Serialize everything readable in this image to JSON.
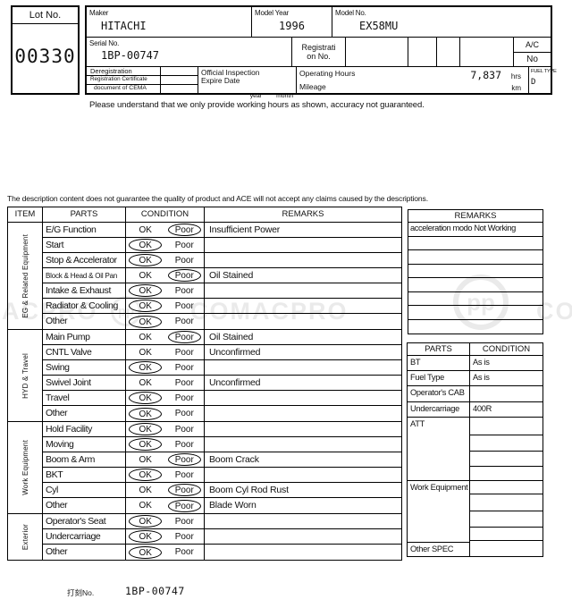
{
  "header": {
    "lot": {
      "label": "Lot No.",
      "value": "00330"
    },
    "maker": {
      "label": "Maker",
      "value": "HITACHI"
    },
    "model_year": {
      "label": "Model Year",
      "value": "1996"
    },
    "model_no": {
      "label": "Model No.",
      "value": "EX58MU"
    },
    "serial_no": {
      "label": "Serial No.",
      "value": "1BP-00747"
    },
    "registration_no": {
      "line1": "Registrati",
      "line2": "on No."
    },
    "ac": {
      "label": "A/C",
      "value": "No"
    },
    "deregistration_rows": [
      "Deregistration",
      "Registration Certificate",
      "document of CEMA"
    ],
    "official_inspection": {
      "line1": "Official Inspection",
      "line2": "Expire Date",
      "year_label": "year",
      "month_label": "month"
    },
    "operating_hours": {
      "label": "Operating Hours",
      "value": "7,837",
      "unit": "hrs"
    },
    "mileage": {
      "label": "Mileage",
      "value": "",
      "unit": "km"
    },
    "fuel_type": {
      "label": "FUEL TYPE",
      "value": "D"
    },
    "notice": "Please understand that we only provide working hours as shown, accuracy not guaranteed."
  },
  "disclaimer": "The description content does not guarantee the quality of product and ACE will not accept any claims caused by the descriptions.",
  "inspection": {
    "headers": {
      "item": "ITEM",
      "parts": "PARTS",
      "condition": "CONDITION",
      "remarks": "REMARKS",
      "ok": "OK",
      "poor": "Poor"
    },
    "groups": [
      {
        "name": "EG & Related Equipment",
        "rows": [
          {
            "part": "E/G Function",
            "circled": "poor",
            "remark": "Insufficient Power"
          },
          {
            "part": "Start",
            "circled": "ok",
            "remark": ""
          },
          {
            "part": "Stop & Accelerator",
            "circled": "ok",
            "remark": ""
          },
          {
            "part": "Block & Head & Oil Pan",
            "circled": "poor",
            "remark": "Oil Stained"
          },
          {
            "part": "Intake & Exhaust",
            "circled": "ok",
            "remark": ""
          },
          {
            "part": "Radiator & Cooling",
            "circled": "ok",
            "remark": ""
          },
          {
            "part": "Other",
            "circled": "ok",
            "remark": ""
          }
        ]
      },
      {
        "name": "HYD & Travel",
        "rows": [
          {
            "part": "Main Pump",
            "circled": "poor",
            "remark": "Oil Stained"
          },
          {
            "part": "CNTL Valve",
            "circled": "none",
            "remark": "Unconfirmed"
          },
          {
            "part": "Swing",
            "circled": "ok",
            "remark": ""
          },
          {
            "part": "Swivel Joint",
            "circled": "none",
            "remark": "Unconfirmed"
          },
          {
            "part": "Travel",
            "circled": "ok",
            "remark": ""
          },
          {
            "part": "Other",
            "circled": "ok",
            "remark": ""
          }
        ]
      },
      {
        "name": "Work Equipment",
        "rows": [
          {
            "part": "Hold Facility",
            "circled": "ok",
            "remark": ""
          },
          {
            "part": "Moving",
            "circled": "ok",
            "remark": ""
          },
          {
            "part": "Boom & Arm",
            "circled": "poor",
            "remark": "Boom Crack"
          },
          {
            "part": "BKT",
            "circled": "ok",
            "remark": ""
          },
          {
            "part": "Cyl",
            "circled": "poor",
            "remark": "Boom Cyl Rod Rust"
          },
          {
            "part": "Other",
            "circled": "poor",
            "remark": "Blade Worn"
          }
        ]
      },
      {
        "name": "Exterior",
        "rows": [
          {
            "part": "Operator's Seat",
            "circled": "ok",
            "remark": ""
          },
          {
            "part": "Undercarriage",
            "circled": "ok",
            "remark": ""
          },
          {
            "part": "Other",
            "circled": "ok",
            "remark": ""
          }
        ]
      }
    ]
  },
  "side_remarks": {
    "header": "REMARKS",
    "rows": [
      "acceleration modo Not Working",
      "",
      "",
      "",
      "",
      "",
      "",
      ""
    ]
  },
  "side_parts": {
    "headers": {
      "parts": "PARTS",
      "condition": "CONDITION"
    },
    "parts_col": [
      "BT",
      "Fuel Type",
      "Operator's CAB",
      "Undercarriage",
      "ATT",
      "Work Equipment",
      "Other SPEC"
    ],
    "condition_col": [
      "As is",
      "As is",
      "",
      "400R",
      "",
      "",
      "",
      "",
      "",
      "",
      "",
      "",
      ""
    ]
  },
  "footer": {
    "stamp_label": "打刻No.",
    "stamp_value": "1BP-00747"
  },
  "watermark": {
    "text": "COMACPRO",
    "fragments": [
      "ACPRO",
      "COMACPRO",
      "CO"
    ],
    "logo_text": "pp"
  }
}
